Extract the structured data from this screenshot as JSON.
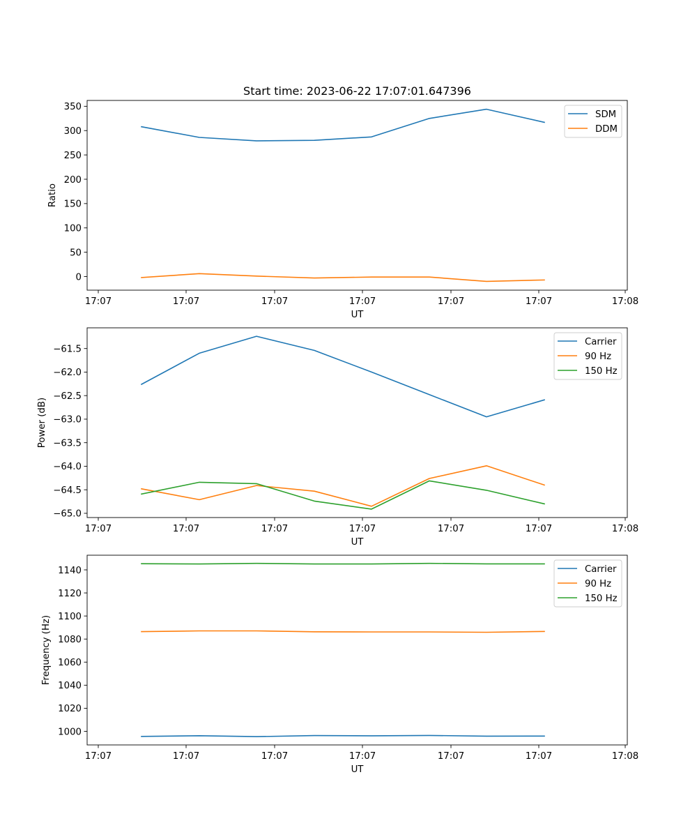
{
  "colors": {
    "blue": "#1f77b4",
    "orange": "#ff7f0e",
    "green": "#2ca02c",
    "axes": "#000000",
    "legend_border": "#cccccc"
  },
  "chart_data": [
    {
      "type": "line",
      "title": "Start time: 2023-06-22 17:07:01.647396",
      "xlabel": "UT",
      "ylabel": "Ratio",
      "x_tick_labels": [
        "17:07",
        "17:07",
        "17:07",
        "17:07",
        "17:07",
        "17:07",
        "17:08"
      ],
      "y_ticks": [
        0,
        50,
        100,
        150,
        200,
        250,
        300,
        350
      ],
      "y_tick_labels": [
        "0",
        "50",
        "100",
        "150",
        "200",
        "250",
        "300",
        "350"
      ],
      "ylim": [
        -28,
        362
      ],
      "grid": false,
      "legend": "upper right",
      "series": [
        {
          "name": "SDM",
          "color": "blue",
          "values": [
            308,
            286,
            279,
            280,
            287,
            325,
            344,
            317
          ]
        },
        {
          "name": "DDM",
          "color": "orange",
          "values": [
            -2,
            6,
            1,
            -3,
            -1,
            -1,
            -10,
            -7
          ]
        }
      ]
    },
    {
      "type": "line",
      "title": "",
      "xlabel": "UT",
      "ylabel": "Power (dB)",
      "x_tick_labels": [
        "17:07",
        "17:07",
        "17:07",
        "17:07",
        "17:07",
        "17:07",
        "17:08"
      ],
      "y_ticks": [
        -65.0,
        -64.5,
        -64.0,
        -63.5,
        -63.0,
        -62.5,
        -62.0,
        -61.5
      ],
      "y_tick_labels": [
        "−65.0",
        "−64.5",
        "−64.0",
        "−63.5",
        "−63.0",
        "−62.5",
        "−62.0",
        "−61.5"
      ],
      "ylim": [
        -65.09,
        -61.06
      ],
      "grid": false,
      "legend": "upper right",
      "series": [
        {
          "name": "Carrier",
          "color": "blue",
          "values": [
            -62.26,
            -61.6,
            -61.24,
            -61.54,
            -62.0,
            -62.48,
            -62.95,
            -62.59
          ]
        },
        {
          "name": "90 Hz",
          "color": "orange",
          "values": [
            -64.48,
            -64.71,
            -64.41,
            -64.53,
            -64.85,
            -64.26,
            -63.99,
            -64.4
          ]
        },
        {
          "name": "150 Hz",
          "color": "green",
          "values": [
            -64.59,
            -64.34,
            -64.37,
            -64.74,
            -64.91,
            -64.31,
            -64.51,
            -64.8
          ]
        }
      ]
    },
    {
      "type": "line",
      "title": "",
      "xlabel": "UT",
      "ylabel": "Frequency (Hz)",
      "x_tick_labels": [
        "17:07",
        "17:07",
        "17:07",
        "17:07",
        "17:07",
        "17:07",
        "17:08"
      ],
      "y_ticks": [
        1000,
        1020,
        1040,
        1060,
        1080,
        1100,
        1120,
        1140
      ],
      "y_tick_labels": [
        "1000",
        "1020",
        "1040",
        "1060",
        "1080",
        "1100",
        "1120",
        "1140"
      ],
      "ylim": [
        988.2,
        1152.7
      ],
      "grid": false,
      "legend": "upper right",
      "series": [
        {
          "name": "Carrier",
          "color": "blue",
          "values": [
            995.6,
            996.2,
            995.4,
            996.3,
            996.1,
            996.4,
            995.8,
            995.9
          ]
        },
        {
          "name": "90 Hz",
          "color": "orange",
          "values": [
            1086.4,
            1087.1,
            1087.1,
            1086.3,
            1086.2,
            1086.2,
            1085.9,
            1086.6
          ]
        },
        {
          "name": "150 Hz",
          "color": "green",
          "values": [
            1145.3,
            1145.1,
            1145.6,
            1145.1,
            1145.1,
            1145.6,
            1145.2,
            1145.2
          ]
        }
      ]
    }
  ]
}
